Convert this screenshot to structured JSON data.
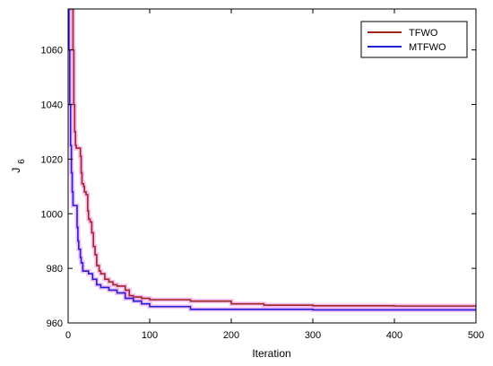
{
  "chart_data": {
    "type": "line",
    "title": "",
    "xlabel": "Iteration",
    "ylabel_main": "J",
    "ylabel_sub": "6",
    "xlim": [
      0,
      500
    ],
    "ylim": [
      960,
      1075
    ],
    "xticks": [
      0,
      100,
      200,
      300,
      400,
      500
    ],
    "yticks": [
      960,
      980,
      1000,
      1020,
      1040,
      1060
    ],
    "grid": false,
    "legend_position": "top-right",
    "series": [
      {
        "name": "TFWO",
        "color": "#a0261e",
        "points": [
          [
            1,
            1075
          ],
          [
            3,
            1075
          ],
          [
            5,
            1075
          ],
          [
            6,
            1060
          ],
          [
            7,
            1040
          ],
          [
            8,
            1030
          ],
          [
            9,
            1025
          ],
          [
            10,
            1024
          ],
          [
            14,
            1024
          ],
          [
            15,
            1021
          ],
          [
            16,
            1015
          ],
          [
            17,
            1011
          ],
          [
            19,
            1010
          ],
          [
            20,
            1008
          ],
          [
            22,
            1007
          ],
          [
            24,
            1001
          ],
          [
            25,
            998
          ],
          [
            27,
            997
          ],
          [
            29,
            993
          ],
          [
            31,
            988
          ],
          [
            33,
            985
          ],
          [
            35,
            981
          ],
          [
            38,
            979
          ],
          [
            40,
            978
          ],
          [
            45,
            976
          ],
          [
            50,
            975
          ],
          [
            55,
            974
          ],
          [
            60,
            973.5
          ],
          [
            70,
            972
          ],
          [
            75,
            970
          ],
          [
            80,
            969.5
          ],
          [
            90,
            969
          ],
          [
            100,
            968.5
          ],
          [
            150,
            968
          ],
          [
            200,
            967
          ],
          [
            240,
            966.5
          ],
          [
            300,
            966.3
          ],
          [
            400,
            966.2
          ],
          [
            500,
            966
          ]
        ]
      },
      {
        "name": "MTFWO",
        "color": "#1f1fd8",
        "points": [
          [
            0,
            1075
          ],
          [
            1,
            1060
          ],
          [
            2,
            1040
          ],
          [
            3,
            1025
          ],
          [
            4,
            1015
          ],
          [
            5,
            1008
          ],
          [
            6,
            1003
          ],
          [
            10,
            1003
          ],
          [
            11,
            995
          ],
          [
            12,
            990
          ],
          [
            13,
            987
          ],
          [
            15,
            984
          ],
          [
            16,
            982
          ],
          [
            18,
            979
          ],
          [
            25,
            978
          ],
          [
            30,
            976
          ],
          [
            35,
            974
          ],
          [
            40,
            973
          ],
          [
            50,
            972
          ],
          [
            60,
            971
          ],
          [
            70,
            969
          ],
          [
            80,
            968
          ],
          [
            90,
            967
          ],
          [
            100,
            966
          ],
          [
            150,
            965
          ],
          [
            300,
            964.8
          ],
          [
            500,
            964.6
          ]
        ]
      }
    ]
  }
}
